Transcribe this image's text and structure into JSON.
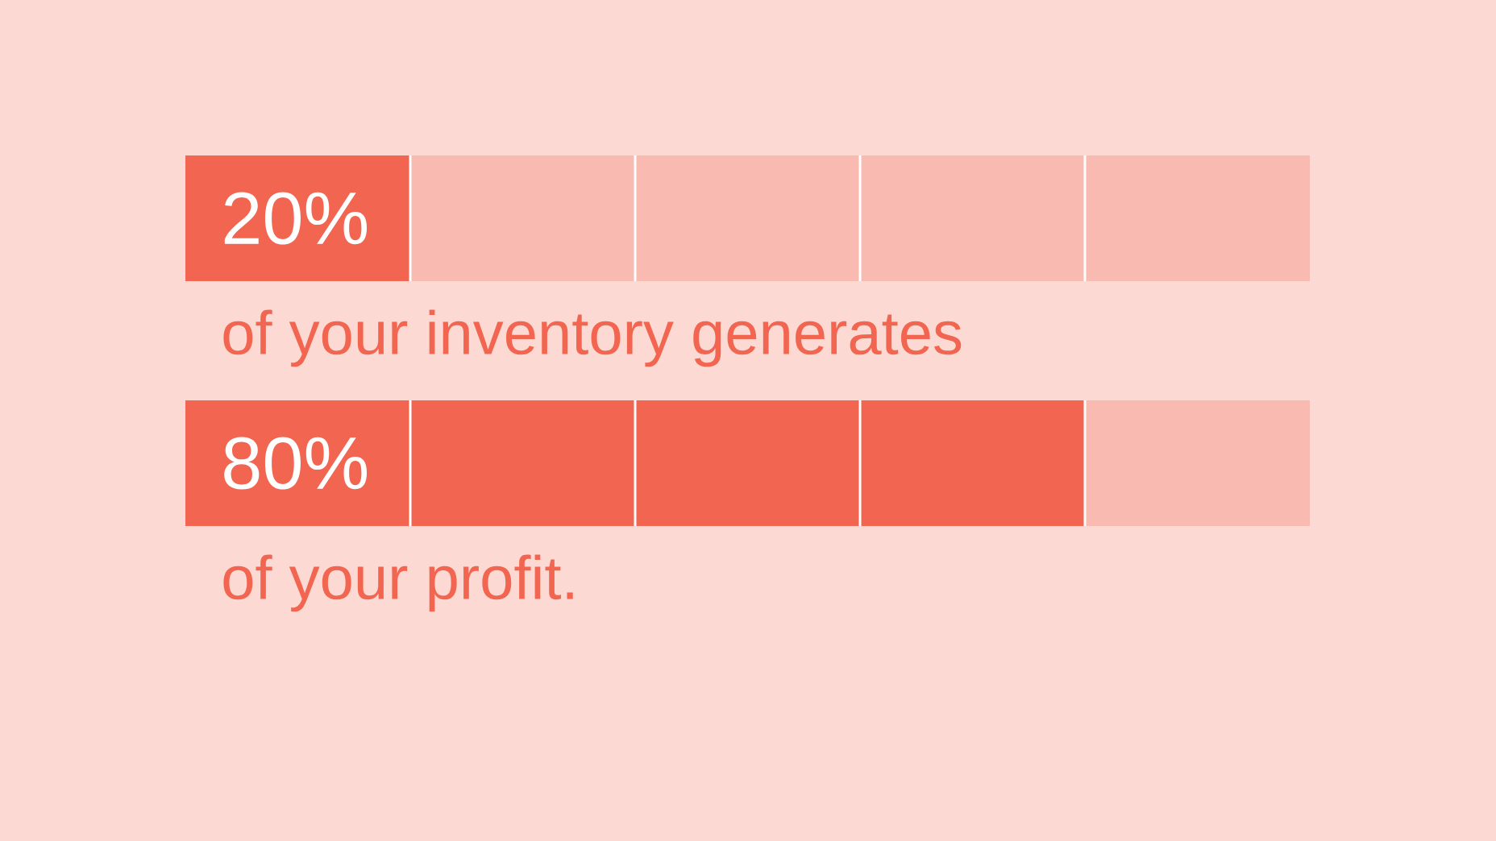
{
  "chart_data": {
    "type": "bar",
    "orientation": "horizontal",
    "stacked": true,
    "categories": [
      "of your inventory generates",
      "of your profit."
    ],
    "series": [
      {
        "color": "#f26651",
        "values": [
          20,
          80
        ],
        "value_labels": [
          "20%",
          "80%"
        ]
      },
      {
        "color": "#f9bbb1",
        "values": [
          80,
          20
        ]
      }
    ],
    "xlim": [
      0,
      100
    ]
  }
}
